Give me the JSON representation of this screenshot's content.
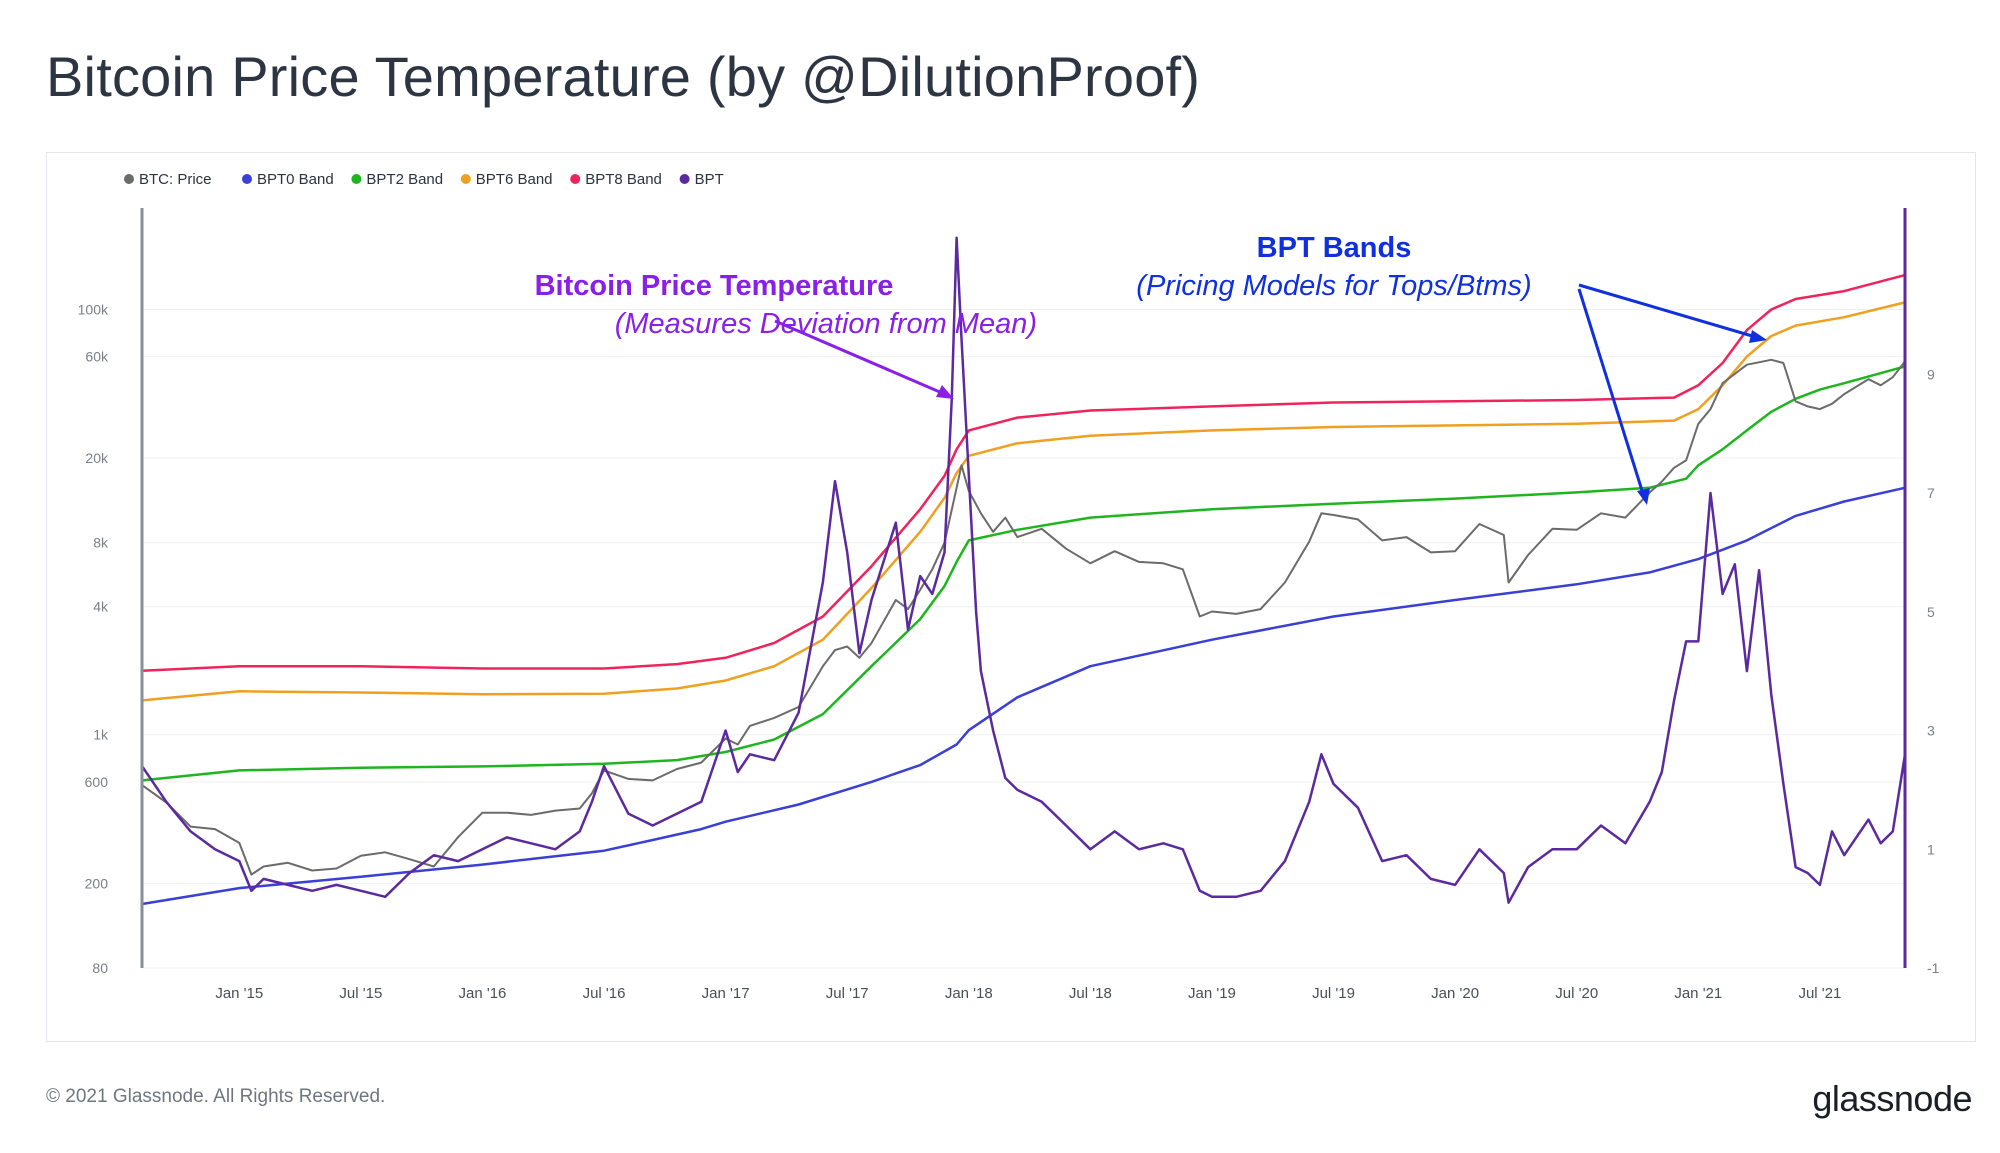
{
  "header": {
    "title": "Bitcoin Price Temperature (by @DilutionProof)"
  },
  "footer": {
    "copyright": "© 2021 Glassnode. All Rights Reserved.",
    "brand": "glassnode"
  },
  "colors": {
    "price": "#6b6b6b",
    "bpt0": "#3a3fd6",
    "bpt2": "#1fb51f",
    "bpt6": "#f0a020",
    "bpt8": "#f0245c",
    "bpt": "#5b2a9e",
    "annotation_purple": "#8a1fe8",
    "annotation_blue": "#1030e0"
  },
  "annotations": {
    "bpt_title": "Bitcoin Price Temperature",
    "bpt_subtitle": "(Measures Deviation from Mean)",
    "bands_title": "BPT Bands",
    "bands_subtitle": "(Pricing Models for Tops/Btms)"
  },
  "chart_data": {
    "type": "line",
    "title": "Bitcoin Price Temperature (by @DilutionProof)",
    "legend": [
      "BTC: Price",
      "BPT0 Band",
      "BPT2 Band",
      "BPT6 Band",
      "BPT8 Band",
      "BPT"
    ],
    "legend_icons": [
      "dot-icon",
      "dot-icon",
      "dot-icon",
      "dot-icon",
      "dot-icon",
      "dot-icon"
    ],
    "x_ticks": [
      "Jan '15",
      "Jul '15",
      "Jan '16",
      "Jul '16",
      "Jan '17",
      "Jul '17",
      "Jan '18",
      "Jul '18",
      "Jan '19",
      "Jul '19",
      "Jan '20",
      "Jul '20",
      "Jan '21",
      "Jul '21"
    ],
    "x_range": [
      2014.6,
      2021.85
    ],
    "y_left": {
      "scale": "log",
      "range": [
        80,
        300000
      ],
      "ticks": [
        80,
        200,
        600,
        "1k",
        "4k",
        "8k",
        "20k",
        "60k",
        "100k"
      ]
    },
    "y_right": {
      "scale": "linear",
      "range": [
        -1,
        11.8
      ],
      "ticks": [
        -1,
        1,
        3,
        5,
        7,
        9
      ]
    },
    "series": [
      {
        "name": "BTC: Price",
        "axis": "left",
        "t": [
          2014.6,
          2014.7,
          2014.8,
          2014.9,
          2015.0,
          2015.05,
          2015.1,
          2015.2,
          2015.3,
          2015.4,
          2015.5,
          2015.6,
          2015.7,
          2015.8,
          2015.9,
          2016.0,
          2016.1,
          2016.2,
          2016.3,
          2016.4,
          2016.45,
          2016.5,
          2016.6,
          2016.7,
          2016.8,
          2016.9,
          2017.0,
          2017.05,
          2017.1,
          2017.2,
          2017.3,
          2017.4,
          2017.45,
          2017.5,
          2017.55,
          2017.6,
          2017.7,
          2017.75,
          2017.8,
          2017.85,
          2017.9,
          2017.95,
          2017.97,
          2018.0,
          2018.05,
          2018.1,
          2018.15,
          2018.2,
          2018.3,
          2018.4,
          2018.5,
          2018.6,
          2018.7,
          2018.8,
          2018.88,
          2018.95,
          2019.0,
          2019.1,
          2019.2,
          2019.3,
          2019.4,
          2019.45,
          2019.5,
          2019.6,
          2019.7,
          2019.8,
          2019.9,
          2020.0,
          2020.1,
          2020.2,
          2020.22,
          2020.3,
          2020.4,
          2020.5,
          2020.6,
          2020.7,
          2020.8,
          2020.85,
          2020.9,
          2020.95,
          2021.0,
          2021.05,
          2021.1,
          2021.2,
          2021.3,
          2021.35,
          2021.4,
          2021.45,
          2021.5,
          2021.55,
          2021.6,
          2021.7,
          2021.75,
          2021.8,
          2021.85
        ],
        "values": [
          580,
          480,
          370,
          360,
          310,
          220,
          240,
          250,
          230,
          235,
          270,
          280,
          260,
          240,
          330,
          430,
          430,
          420,
          440,
          450,
          530,
          680,
          620,
          610,
          690,
          740,
          960,
          900,
          1100,
          1200,
          1350,
          2100,
          2500,
          2600,
          2300,
          2700,
          4300,
          3900,
          4800,
          6000,
          8000,
          14500,
          18500,
          14000,
          11000,
          9000,
          10500,
          8500,
          9300,
          7500,
          6400,
          7300,
          6500,
          6400,
          6000,
          3600,
          3800,
          3700,
          3900,
          5200,
          8100,
          11000,
          10800,
          10300,
          8200,
          8500,
          7200,
          7300,
          9800,
          8700,
          5200,
          7000,
          9300,
          9200,
          11000,
          10500,
          13800,
          15500,
          18000,
          19500,
          29000,
          34000,
          45000,
          55000,
          58000,
          56000,
          37000,
          35000,
          34000,
          36000,
          40000,
          47000,
          44000,
          48000,
          57000
        ]
      },
      {
        "name": "BPT0 Band",
        "axis": "left",
        "t": [
          2014.6,
          2015.0,
          2015.5,
          2016.0,
          2016.5,
          2016.7,
          2016.9,
          2017.0,
          2017.3,
          2017.6,
          2017.8,
          2017.95,
          2018.0,
          2018.2,
          2018.5,
          2019.0,
          2019.5,
          2020.0,
          2020.5,
          2020.8,
          2021.0,
          2021.2,
          2021.4,
          2021.6,
          2021.85
        ],
        "values": [
          160,
          190,
          215,
          245,
          285,
          320,
          360,
          390,
          470,
          600,
          720,
          900,
          1050,
          1500,
          2100,
          2800,
          3600,
          4300,
          5100,
          5800,
          6700,
          8200,
          10700,
          12500,
          14500
        ]
      },
      {
        "name": "BPT2 Band",
        "axis": "left",
        "t": [
          2014.6,
          2015.0,
          2015.5,
          2016.0,
          2016.5,
          2016.8,
          2017.0,
          2017.2,
          2017.4,
          2017.6,
          2017.8,
          2017.9,
          2017.95,
          2018.0,
          2018.2,
          2018.5,
          2019.0,
          2019.5,
          2020.0,
          2020.5,
          2020.8,
          2020.95,
          2021.0,
          2021.1,
          2021.2,
          2021.3,
          2021.4,
          2021.5,
          2021.6,
          2021.85
        ],
        "values": [
          610,
          680,
          700,
          710,
          730,
          760,
          830,
          950,
          1250,
          2100,
          3500,
          5000,
          6500,
          8200,
          9200,
          10500,
          11500,
          12200,
          12900,
          13800,
          14500,
          16000,
          18500,
          22000,
          27000,
          33000,
          38000,
          42000,
          45000,
          54000
        ]
      },
      {
        "name": "BPT6 Band",
        "axis": "left",
        "t": [
          2014.6,
          2015.0,
          2015.5,
          2016.0,
          2016.5,
          2016.8,
          2017.0,
          2017.2,
          2017.4,
          2017.6,
          2017.8,
          2017.9,
          2017.95,
          2018.0,
          2018.2,
          2018.5,
          2019.0,
          2019.5,
          2020.0,
          2020.5,
          2020.9,
          2021.0,
          2021.1,
          2021.2,
          2021.3,
          2021.4,
          2021.6,
          2021.85
        ],
        "values": [
          1450,
          1600,
          1580,
          1550,
          1560,
          1650,
          1800,
          2100,
          2800,
          4900,
          9000,
          13000,
          17000,
          20500,
          23500,
          25500,
          27000,
          28000,
          28500,
          29000,
          30000,
          34000,
          44000,
          60000,
          75000,
          84000,
          92000,
          108000
        ]
      },
      {
        "name": "BPT8 Band",
        "axis": "left",
        "t": [
          2014.6,
          2015.0,
          2015.5,
          2016.0,
          2016.5,
          2016.8,
          2017.0,
          2017.2,
          2017.4,
          2017.6,
          2017.8,
          2017.9,
          2017.95,
          2018.0,
          2018.2,
          2018.5,
          2019.0,
          2019.5,
          2020.0,
          2020.5,
          2020.9,
          2021.0,
          2021.1,
          2021.2,
          2021.3,
          2021.4,
          2021.6,
          2021.85
        ],
        "values": [
          2000,
          2100,
          2100,
          2050,
          2050,
          2150,
          2300,
          2700,
          3600,
          6200,
          11500,
          16500,
          22000,
          27000,
          31000,
          33500,
          35000,
          36500,
          37000,
          37500,
          38500,
          44000,
          56000,
          80000,
          100000,
          112000,
          122000,
          145000
        ]
      },
      {
        "name": "BPT",
        "axis": "right",
        "t": [
          2014.6,
          2014.7,
          2014.8,
          2014.9,
          2015.0,
          2015.05,
          2015.1,
          2015.2,
          2015.3,
          2015.4,
          2015.5,
          2015.6,
          2015.7,
          2015.8,
          2015.9,
          2016.0,
          2016.1,
          2016.2,
          2016.3,
          2016.4,
          2016.45,
          2016.5,
          2016.6,
          2016.7,
          2016.8,
          2016.9,
          2017.0,
          2017.05,
          2017.1,
          2017.2,
          2017.3,
          2017.4,
          2017.45,
          2017.5,
          2017.55,
          2017.6,
          2017.7,
          2017.75,
          2017.8,
          2017.85,
          2017.9,
          2017.93,
          2017.95,
          2017.97,
          2018.0,
          2018.03,
          2018.05,
          2018.1,
          2018.15,
          2018.2,
          2018.3,
          2018.4,
          2018.5,
          2018.6,
          2018.7,
          2018.8,
          2018.88,
          2018.95,
          2019.0,
          2019.1,
          2019.2,
          2019.3,
          2019.4,
          2019.45,
          2019.5,
          2019.6,
          2019.7,
          2019.8,
          2019.9,
          2020.0,
          2020.1,
          2020.2,
          2020.22,
          2020.3,
          2020.4,
          2020.5,
          2020.6,
          2020.7,
          2020.8,
          2020.85,
          2020.9,
          2020.95,
          2021.0,
          2021.05,
          2021.1,
          2021.15,
          2021.2,
          2021.25,
          2021.3,
          2021.35,
          2021.4,
          2021.45,
          2021.5,
          2021.55,
          2021.6,
          2021.7,
          2021.75,
          2021.8,
          2021.85
        ],
        "values": [
          2.4,
          1.8,
          1.3,
          1.0,
          0.8,
          0.3,
          0.5,
          0.4,
          0.3,
          0.4,
          0.3,
          0.2,
          0.6,
          0.9,
          0.8,
          1.0,
          1.2,
          1.1,
          1.0,
          1.3,
          1.8,
          2.4,
          1.6,
          1.4,
          1.6,
          1.8,
          3.0,
          2.3,
          2.6,
          2.5,
          3.3,
          5.5,
          7.2,
          6.0,
          4.3,
          5.2,
          6.5,
          4.7,
          5.6,
          5.3,
          6.0,
          8.6,
          11.3,
          9.6,
          7.3,
          5.0,
          4.0,
          3.0,
          2.2,
          2.0,
          1.8,
          1.4,
          1.0,
          1.3,
          1.0,
          1.1,
          1.0,
          0.3,
          0.2,
          0.2,
          0.3,
          0.8,
          1.8,
          2.6,
          2.1,
          1.7,
          0.8,
          0.9,
          0.5,
          0.4,
          1.0,
          0.6,
          0.1,
          0.7,
          1.0,
          1.0,
          1.4,
          1.1,
          1.8,
          2.3,
          3.5,
          4.5,
          4.5,
          7.0,
          5.3,
          5.8,
          4.0,
          5.7,
          3.6,
          2.1,
          0.7,
          0.6,
          0.4,
          1.3,
          0.9,
          1.5,
          1.1,
          1.3,
          2.6
        ]
      }
    ]
  }
}
